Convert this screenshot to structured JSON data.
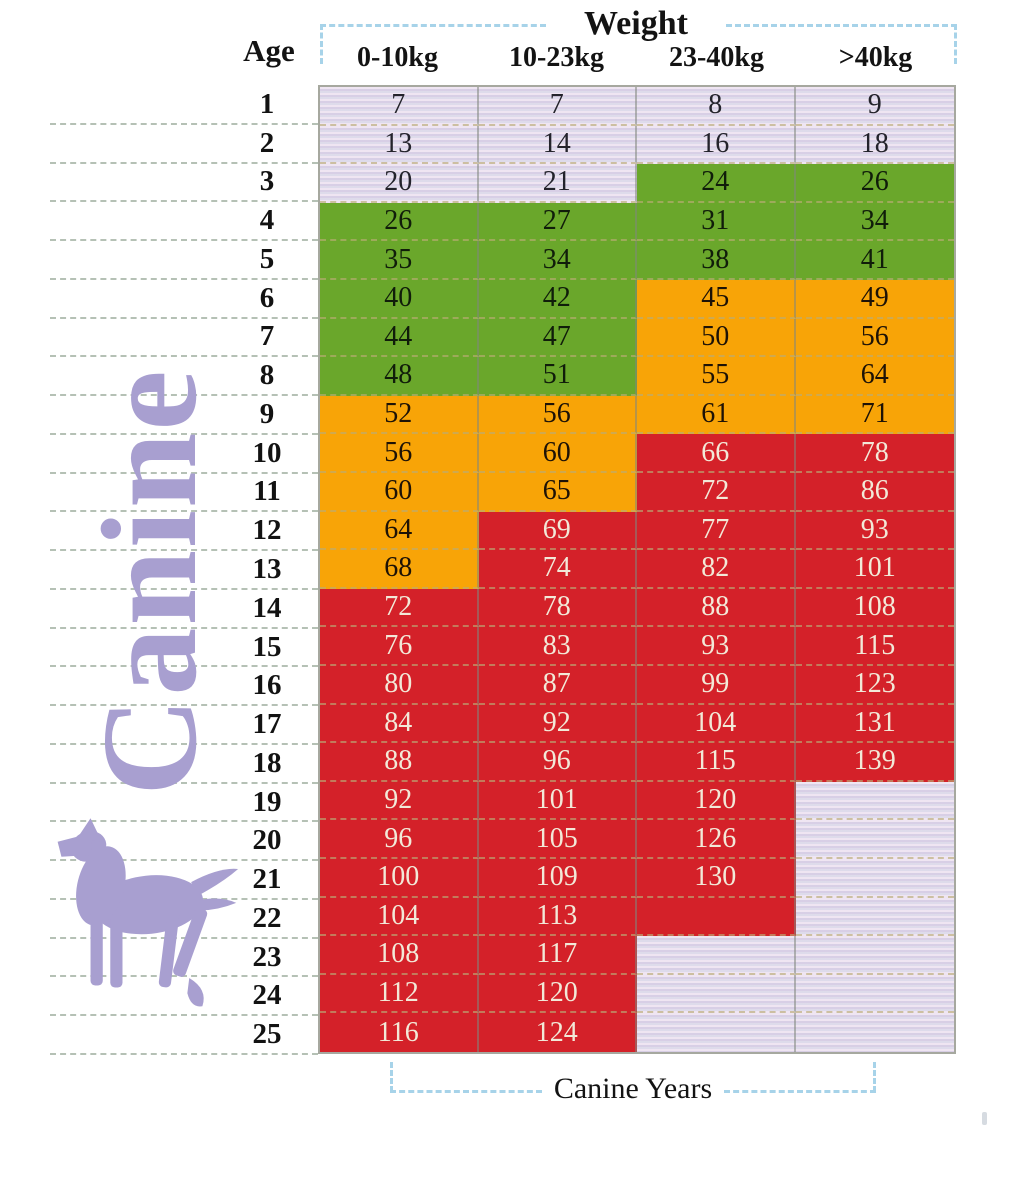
{
  "header": {
    "weight_label": "Weight",
    "age_label": "Age"
  },
  "footer": {
    "canine_years_label": "Canine Years"
  },
  "side": {
    "vertical_label": "Canine",
    "dog_icon": "dog-silhouette"
  },
  "colors": {
    "lavender": "#dcd3e6",
    "green": "#6aa72b",
    "orange": "#f8a407",
    "red": "#d42129",
    "red_text": "#f2e9d8",
    "canine_purple": "#a89fd0",
    "bracket_blue": "#a7d3e9",
    "rule_line": "#a9b7a9"
  },
  "chart_data": {
    "type": "table",
    "title": "Canine age conversion by weight",
    "column_group_label": "Weight",
    "row_axis_label": "Age",
    "bottom_caption": "Canine Years",
    "columns": [
      "0-10kg",
      "10-23kg",
      "23-40kg",
      ">40kg"
    ],
    "zone_colors": {
      "lavender": "#dcd3e6",
      "green": "#6aa72b",
      "orange": "#f8a407",
      "red": "#d42129"
    },
    "rows": [
      {
        "age": 1,
        "values": [
          "7",
          "7",
          "8",
          "9"
        ],
        "zones": [
          "lavender",
          "lavender",
          "lavender",
          "lavender"
        ]
      },
      {
        "age": 2,
        "values": [
          "13",
          "14",
          "16",
          "18"
        ],
        "zones": [
          "lavender",
          "lavender",
          "lavender",
          "lavender"
        ]
      },
      {
        "age": 3,
        "values": [
          "20",
          "21",
          "24",
          "26"
        ],
        "zones": [
          "lavender",
          "lavender",
          "green",
          "green"
        ]
      },
      {
        "age": 4,
        "values": [
          "26",
          "27",
          "31",
          "34"
        ],
        "zones": [
          "green",
          "green",
          "green",
          "green"
        ]
      },
      {
        "age": 5,
        "values": [
          "35",
          "34",
          "38",
          "41"
        ],
        "zones": [
          "green",
          "green",
          "green",
          "green"
        ]
      },
      {
        "age": 6,
        "values": [
          "40",
          "42",
          "45",
          "49"
        ],
        "zones": [
          "green",
          "green",
          "orange",
          "orange"
        ]
      },
      {
        "age": 7,
        "values": [
          "44",
          "47",
          "50",
          "56"
        ],
        "zones": [
          "green",
          "green",
          "orange",
          "orange"
        ]
      },
      {
        "age": 8,
        "values": [
          "48",
          "51",
          "55",
          "64"
        ],
        "zones": [
          "green",
          "green",
          "orange",
          "orange"
        ]
      },
      {
        "age": 9,
        "values": [
          "52",
          "56",
          "61",
          "71"
        ],
        "zones": [
          "orange",
          "orange",
          "orange",
          "orange"
        ]
      },
      {
        "age": 10,
        "values": [
          "56",
          "60",
          "66",
          "78"
        ],
        "zones": [
          "orange",
          "orange",
          "red",
          "red"
        ]
      },
      {
        "age": 11,
        "values": [
          "60",
          "65",
          "72",
          "86"
        ],
        "zones": [
          "orange",
          "orange",
          "red",
          "red"
        ]
      },
      {
        "age": 12,
        "values": [
          "64",
          "69",
          "77",
          "93"
        ],
        "zones": [
          "orange",
          "red",
          "red",
          "red"
        ]
      },
      {
        "age": 13,
        "values": [
          "68",
          "74",
          "82",
          "101"
        ],
        "zones": [
          "orange",
          "red",
          "red",
          "red"
        ]
      },
      {
        "age": 14,
        "values": [
          "72",
          "78",
          "88",
          "108"
        ],
        "zones": [
          "red",
          "red",
          "red",
          "red"
        ]
      },
      {
        "age": 15,
        "values": [
          "76",
          "83",
          "93",
          "115"
        ],
        "zones": [
          "red",
          "red",
          "red",
          "red"
        ]
      },
      {
        "age": 16,
        "values": [
          "80",
          "87",
          "99",
          "123"
        ],
        "zones": [
          "red",
          "red",
          "red",
          "red"
        ]
      },
      {
        "age": 17,
        "values": [
          "84",
          "92",
          "104",
          "131"
        ],
        "zones": [
          "red",
          "red",
          "red",
          "red"
        ]
      },
      {
        "age": 18,
        "values": [
          "88",
          "96",
          "115",
          "139"
        ],
        "zones": [
          "red",
          "red",
          "red",
          "red"
        ]
      },
      {
        "age": 19,
        "values": [
          "92",
          "101",
          "120",
          ""
        ],
        "zones": [
          "red",
          "red",
          "red",
          "lavender"
        ]
      },
      {
        "age": 20,
        "values": [
          "96",
          "105",
          "126",
          ""
        ],
        "zones": [
          "red",
          "red",
          "red",
          "lavender"
        ]
      },
      {
        "age": 21,
        "values": [
          "100",
          "109",
          "130",
          ""
        ],
        "zones": [
          "red",
          "red",
          "red",
          "lavender"
        ]
      },
      {
        "age": 22,
        "values": [
          "104",
          "113",
          "",
          ""
        ],
        "zones": [
          "red",
          "red",
          "red",
          "lavender"
        ]
      },
      {
        "age": 23,
        "values": [
          "108",
          "117",
          "",
          ""
        ],
        "zones": [
          "red",
          "red",
          "lavender",
          "lavender"
        ]
      },
      {
        "age": 24,
        "values": [
          "112",
          "120",
          "",
          ""
        ],
        "zones": [
          "red",
          "red",
          "lavender",
          "lavender"
        ]
      },
      {
        "age": 25,
        "values": [
          "116",
          "124",
          "",
          ""
        ],
        "zones": [
          "red",
          "red",
          "lavender",
          "lavender"
        ]
      }
    ]
  }
}
